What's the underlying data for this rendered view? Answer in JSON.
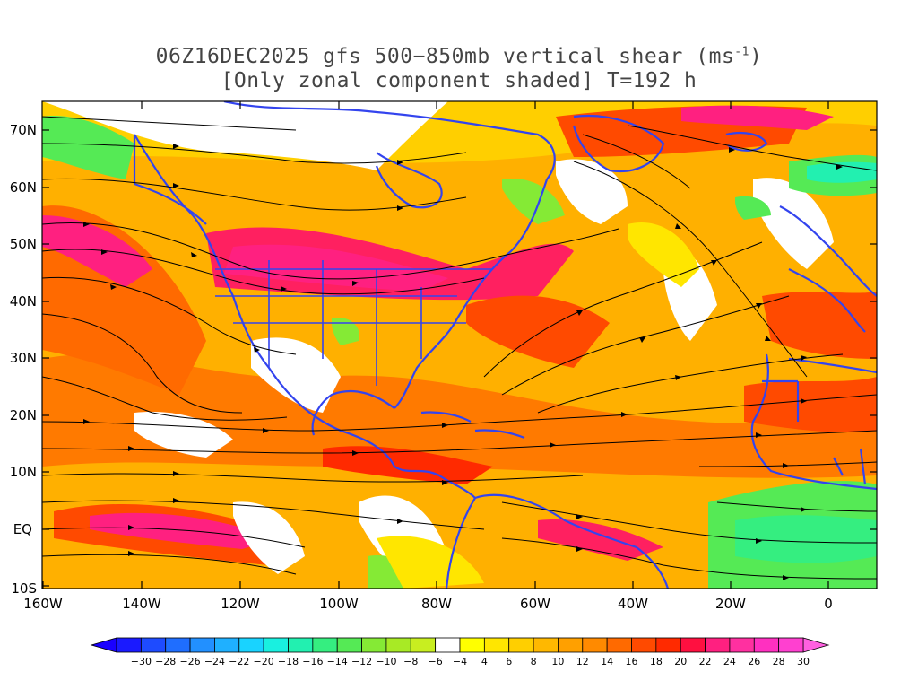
{
  "title": {
    "line1": "06Z16DEC2025 gfs 500−850mb vertical shear (ms",
    "line1_sup": "-1",
    "line1_end": ")",
    "line2": "[Only zonal component shaded] T=192 h"
  },
  "axes": {
    "lat_labels": [
      "70N",
      "60N",
      "50N",
      "40N",
      "30N",
      "20N",
      "10N",
      "EQ",
      "10S"
    ],
    "lon_labels": [
      "160W",
      "140W",
      "120W",
      "100W",
      "80W",
      "60W",
      "40W",
      "20W",
      "0"
    ]
  },
  "colorbar": {
    "labels": [
      "-30",
      "-28",
      "-26",
      "-24",
      "-22",
      "-20",
      "-18",
      "-16",
      "-14",
      "-12",
      "-10",
      "-8",
      "-6",
      "-4",
      "4",
      "6",
      "8",
      "10",
      "12",
      "14",
      "16",
      "18",
      "20",
      "22",
      "24",
      "26",
      "28",
      "30"
    ],
    "colors": [
      "#1a1aff",
      "#1e4bff",
      "#1f6eff",
      "#2290ff",
      "#1fb0ff",
      "#19d3ff",
      "#19f0e0",
      "#22f0b0",
      "#35ee80",
      "#55ea55",
      "#85ea35",
      "#a8ea25",
      "#c8ee20",
      "#ffffff",
      "#ffff00",
      "#ffe600",
      "#ffcf00",
      "#ffb800",
      "#ffa000",
      "#ff8a00",
      "#ff6a00",
      "#ff4a00",
      "#ff2a00",
      "#ff1040",
      "#ff2080",
      "#ff30a0",
      "#ff30c0",
      "#ff40d0"
    ]
  },
  "colors": {
    "coast": "#3344ee",
    "title_text": "#444444"
  }
}
